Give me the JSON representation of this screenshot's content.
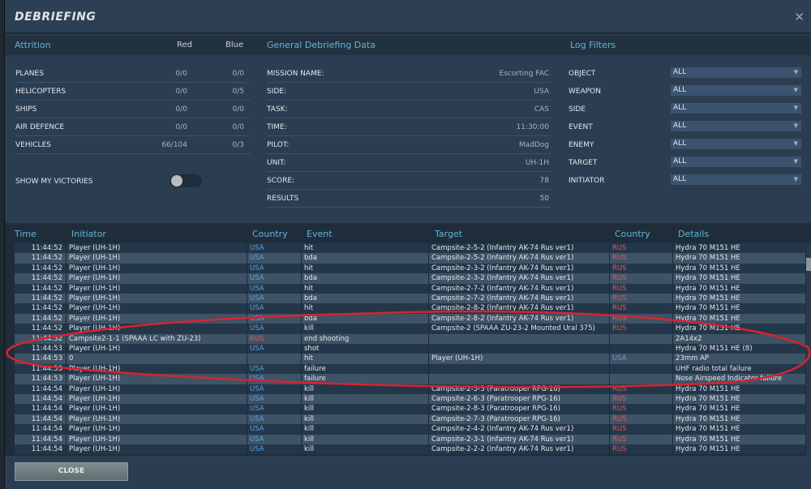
{
  "title": "DEBRIEFING",
  "attrition": {
    "heading": "Attrition",
    "red_label": "Red",
    "blue_label": "Blue",
    "rows": [
      {
        "label": "PLANES",
        "red": "0/0",
        "blue": "0/0"
      },
      {
        "label": "HELICOPTERS",
        "red": "0/0",
        "blue": "0/5"
      },
      {
        "label": "SHIPS",
        "red": "0/0",
        "blue": "0/0"
      },
      {
        "label": "AIR DEFENCE",
        "red": "0/0",
        "blue": "0/0"
      },
      {
        "label": "VEHICLES",
        "red": "66/104",
        "blue": "0/3"
      }
    ],
    "show_victories": "SHOW MY VICTORIES",
    "show_victories_on": false
  },
  "general": {
    "heading": "General Debriefing Data",
    "rows": [
      {
        "label": "MISSION NAME:",
        "value": "Escorting FAC"
      },
      {
        "label": "SIDE:",
        "value": "USA"
      },
      {
        "label": "TASK:",
        "value": "CAS"
      },
      {
        "label": "TIME:",
        "value": "11:30:00"
      },
      {
        "label": "PILOT:",
        "value": "MadDog"
      },
      {
        "label": "UNIT:",
        "value": "UH-1H"
      },
      {
        "label": "SCORE:",
        "value": "78"
      },
      {
        "label": "RESULTS",
        "value": "50"
      }
    ]
  },
  "filters": {
    "heading": "Log Filters",
    "rows": [
      {
        "label": "OBJECT",
        "value": "ALL"
      },
      {
        "label": "WEAPON",
        "value": "ALL"
      },
      {
        "label": "SIDE",
        "value": "ALL"
      },
      {
        "label": "EVENT",
        "value": "ALL"
      },
      {
        "label": "ENEMY",
        "value": "ALL"
      },
      {
        "label": "TARGET",
        "value": "ALL"
      },
      {
        "label": "INITIATOR",
        "value": "ALL"
      }
    ]
  },
  "log": {
    "headers": {
      "time": "Time",
      "initiator": "Initiator",
      "country": "Country",
      "event": "Event",
      "target": "Target",
      "country2": "Country",
      "details": "Details"
    },
    "rows": [
      [
        "11:44:52",
        "Player (UH-1H)",
        "USA",
        "hit",
        "Campsite-2-5-2 (Infantry AK-74 Rus ver1)",
        "RUS",
        "Hydra 70 M151 HE"
      ],
      [
        "11:44:52",
        "Player (UH-1H)",
        "USA",
        "bda",
        "Campsite-2-5-2 (Infantry AK-74 Rus ver1)",
        "RUS",
        "Hydra 70 M151 HE"
      ],
      [
        "11:44:52",
        "Player (UH-1H)",
        "USA",
        "hit",
        "Campsite-2-3-2 (Infantry AK-74 Rus ver1)",
        "RUS",
        "Hydra 70 M151 HE"
      ],
      [
        "11:44:52",
        "Player (UH-1H)",
        "USA",
        "bda",
        "Campsite-2-3-2 (Infantry AK-74 Rus ver1)",
        "RUS",
        "Hydra 70 M151 HE"
      ],
      [
        "11:44:52",
        "Player (UH-1H)",
        "USA",
        "hit",
        "Campsite-2-7-2 (Infantry AK-74 Rus ver1)",
        "RUS",
        "Hydra 70 M151 HE"
      ],
      [
        "11:44:52",
        "Player (UH-1H)",
        "USA",
        "bda",
        "Campsite-2-7-2 (Infantry AK-74 Rus ver1)",
        "RUS",
        "Hydra 70 M151 HE"
      ],
      [
        "11:44:52",
        "Player (UH-1H)",
        "USA",
        "hit",
        "Campsite-2-8-2 (Infantry AK-74 Rus ver1)",
        "RUS",
        "Hydra 70 M151 HE"
      ],
      [
        "11:44:52",
        "Player (UH-1H)",
        "USA",
        "bda",
        "Campsite-2-8-2 (Infantry AK-74 Rus ver1)",
        "RUS",
        "Hydra 70 M151 HE"
      ],
      [
        "11:44:52",
        "Player (UH-1H)",
        "USA",
        "kill",
        "Campsite-2 (SPAAA ZU-23-2 Mounted Ural 375)",
        "RUS",
        "Hydra 70 M151 HE"
      ],
      [
        "11:44:52",
        "Campsite2-1-1 (SPAAA LC with ZU-23)",
        "RUS",
        "end shooting",
        "",
        "",
        "2A14x2"
      ],
      [
        "11:44:53",
        "Player (UH-1H)",
        "USA",
        "shot",
        "",
        "",
        "Hydra 70 M151 HE (8)"
      ],
      [
        "11:44:53",
        "0",
        "",
        "hit",
        "Player (UH-1H)",
        "USA",
        "23mm AP"
      ],
      [
        "11:44:53",
        "Player (UH-1H)",
        "USA",
        "failure",
        "",
        "",
        "UHF radio total failure"
      ],
      [
        "11:44:53",
        "Player (UH-1H)",
        "USA",
        "failure",
        "",
        "",
        "Nose Airspeed Indicator failure"
      ],
      [
        "11:44:54",
        "Player (UH-1H)",
        "USA",
        "kill",
        "Campsite-2-5-3 (Paratrooper RPG-16)",
        "RUS",
        "Hydra 70 M151 HE"
      ],
      [
        "11:44:54",
        "Player (UH-1H)",
        "USA",
        "kill",
        "Campsite-2-6-3 (Paratrooper RPG-16)",
        "RUS",
        "Hydra 70 M151 HE"
      ],
      [
        "11:44:54",
        "Player (UH-1H)",
        "USA",
        "kill",
        "Campsite-2-8-3 (Paratrooper RPG-16)",
        "RUS",
        "Hydra 70 M151 HE"
      ],
      [
        "11:44:54",
        "Player (UH-1H)",
        "USA",
        "kill",
        "Campsite-2-7-3 (Paratrooper RPG-16)",
        "RUS",
        "Hydra 70 M151 HE"
      ],
      [
        "11:44:54",
        "Player (UH-1H)",
        "USA",
        "kill",
        "Campsite-2-4-2 (Infantry AK-74 Rus ver1)",
        "RUS",
        "Hydra 70 M151 HE"
      ],
      [
        "11:44:54",
        "Player (UH-1H)",
        "USA",
        "kill",
        "Campsite-2-3-1 (Infantry AK-74 Rus ver1)",
        "RUS",
        "Hydra 70 M151 HE"
      ],
      [
        "11:44:54",
        "Player (UH-1H)",
        "USA",
        "kill",
        "Campsite-2-2-2 (Infantry AK-74 Rus ver1)",
        "RUS",
        "Hydra 70 M151 HE"
      ]
    ]
  },
  "close_label": "CLOSE",
  "colors": {
    "accent": "#62b4d6",
    "usa": "#5aa2e0",
    "rus": "#e05a5a",
    "annotation": "#d8232f"
  }
}
